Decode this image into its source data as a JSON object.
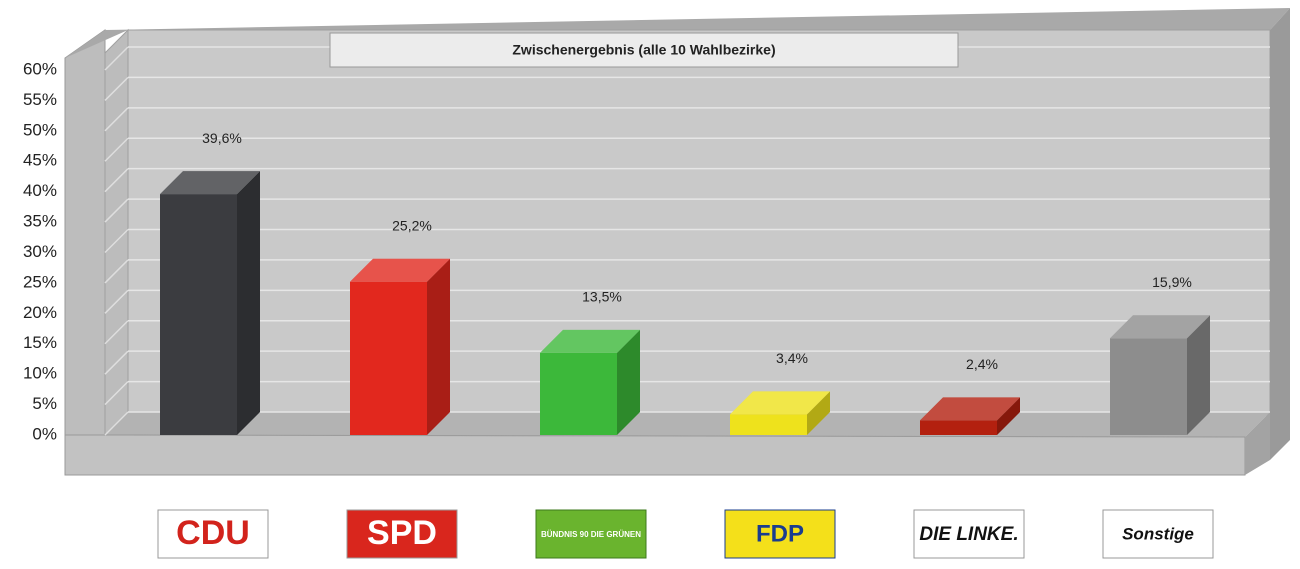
{
  "chart_data": {
    "type": "bar3d",
    "title": "Zwischenergebnis (alle 10 Wahlbezirke)",
    "categories": [
      "CDU",
      "SPD",
      "BÜNDNIS 90 DIE GRÜNEN",
      "FDP",
      "DIE LINKE.",
      "Sonstige"
    ],
    "values": [
      39.6,
      25.2,
      13.5,
      3.4,
      2.4,
      15.9
    ],
    "value_labels": [
      "39,6%",
      "25,2%",
      "13,5%",
      "3,4%",
      "2,4%",
      "15,9%"
    ],
    "colors": [
      "#3b3c40",
      "#e2281e",
      "#3cb83a",
      "#eee21c",
      "#b3200f",
      "#8d8d8d"
    ],
    "ylim": [
      0,
      60
    ],
    "yticks": [
      {
        "value": 0,
        "label": "0%"
      },
      {
        "value": 5,
        "label": "5%"
      },
      {
        "value": 10,
        "label": "10%"
      },
      {
        "value": 15,
        "label": "15%"
      },
      {
        "value": 20,
        "label": "20%"
      },
      {
        "value": 25,
        "label": "25%"
      },
      {
        "value": 30,
        "label": "30%"
      },
      {
        "value": 35,
        "label": "35%"
      },
      {
        "value": 40,
        "label": "40%"
      },
      {
        "value": 45,
        "label": "45%"
      },
      {
        "value": 50,
        "label": "50%"
      },
      {
        "value": 55,
        "label": "55%"
      },
      {
        "value": 60,
        "label": "60%"
      }
    ],
    "grid": true
  }
}
